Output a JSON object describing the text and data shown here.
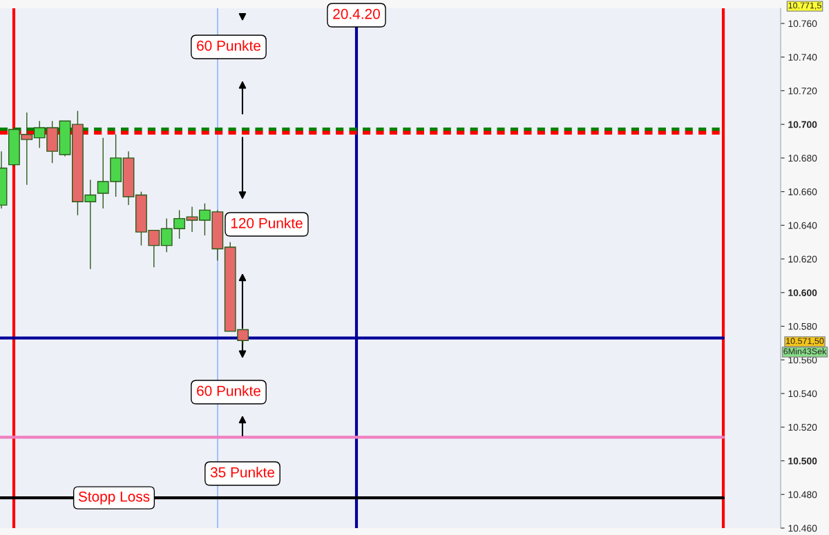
{
  "chart_data": {
    "type": "candlestick",
    "categories": [
      null,
      null,
      null,
      null,
      null,
      null,
      null,
      null,
      null,
      null,
      null,
      null,
      null,
      null,
      null,
      null,
      null,
      null,
      null,
      null,
      null,
      null,
      null,
      null,
      null,
      null,
      null,
      null,
      null,
      null,
      null,
      null,
      null,
      null,
      null,
      null,
      null,
      null,
      null,
      null,
      null,
      null,
      null,
      null,
      null,
      null,
      null,
      null,
      null,
      null,
      null,
      null,
      null,
      null,
      null,
      null,
      null,
      null,
      null,
      null,
      null
    ],
    "ohlc": [
      [
        10652,
        10684,
        10650,
        10674
      ],
      [
        10676,
        10697,
        10675,
        10697
      ],
      [
        10694,
        10707,
        10664,
        10691
      ],
      [
        10692,
        10702,
        10686,
        10698
      ],
      [
        10698,
        10702,
        10677,
        10684
      ],
      [
        10682,
        10702,
        10681,
        10702
      ],
      [
        10700,
        10708,
        10646,
        10654
      ],
      [
        10654,
        10667,
        10614,
        10658
      ],
      [
        10659,
        10692,
        10650,
        10666
      ],
      [
        10666,
        10694,
        10657,
        10680
      ],
      [
        10680,
        10684,
        10652,
        10657
      ],
      [
        10658,
        10660,
        10628,
        10636
      ],
      [
        10637,
        10637,
        10615,
        10628
      ],
      [
        10628,
        10644,
        10624,
        10638
      ],
      [
        10638,
        10649,
        10632,
        10644
      ],
      [
        10645,
        10651,
        10636,
        10643
      ],
      [
        10643,
        10653,
        10634,
        10649
      ],
      [
        10648,
        10649,
        10619,
        10626
      ],
      [
        10627,
        10630,
        10577,
        10577
      ],
      [
        10578,
        10578,
        10569,
        10571.5
      ],
      null,
      null,
      null,
      null,
      null,
      null,
      null,
      null,
      null,
      null,
      null,
      null,
      null,
      null,
      null,
      null,
      null,
      null,
      null,
      null,
      null,
      null,
      null,
      null,
      null,
      null,
      null,
      null,
      null,
      null,
      null,
      null,
      null,
      null,
      null,
      null,
      null,
      null,
      null,
      null,
      null
    ],
    "colors": [
      "#4cd64c",
      "#4cd64c",
      "#e66a6a",
      "#4cd64c",
      "#e66a6a",
      "#4cd64c",
      "#e66a6a",
      "#4cd64c",
      "#4cd64c",
      "#4cd64c",
      "#e66a6a",
      "#e66a6a",
      "#e66a6a",
      "#4cd64c",
      "#4cd64c",
      "#e66a6a",
      "#4cd64c",
      "#e66a6a",
      "#e66a6a",
      "#e66a6a",
      null,
      null,
      null,
      null,
      null,
      null,
      null,
      null,
      null,
      null,
      null,
      null,
      null,
      null,
      null,
      null,
      null,
      null,
      null,
      null,
      null,
      null,
      null,
      null,
      null,
      null,
      null,
      null,
      null,
      null,
      null,
      null,
      null,
      null,
      null,
      null,
      null,
      null,
      null,
      null,
      null
    ],
    "ylim": [
      10460,
      10769
    ],
    "yticks": [
      {
        "value": 10460,
        "label": "10.460"
      },
      {
        "value": 10480,
        "label": "10.480"
      },
      {
        "value": 10500,
        "label": "10.500"
      },
      {
        "value": 10520,
        "label": "10.520"
      },
      {
        "value": 10540,
        "label": "10.540"
      },
      {
        "value": 10560,
        "label": "10.560"
      },
      {
        "value": 10580,
        "label": "10.580"
      },
      {
        "value": 10600,
        "label": "10.600"
      },
      {
        "value": 10620,
        "label": "10.620"
      },
      {
        "value": 10640,
        "label": "10.640"
      },
      {
        "value": 10660,
        "label": "10.660"
      },
      {
        "value": 10680,
        "label": "10.680"
      },
      {
        "value": 10700,
        "label": "10.700"
      },
      {
        "value": 10720,
        "label": "10.720"
      },
      {
        "value": 10740,
        "label": "10.740"
      },
      {
        "value": 10760,
        "label": "10.760"
      }
    ],
    "tick_labels": "y",
    "ref_lines": [
      {
        "axis": "y",
        "value": 10697,
        "color": "#008000",
        "line_style": "dashed"
      },
      {
        "axis": "y",
        "value": 10695,
        "color": "#ff0000",
        "line_style": "dashed"
      },
      {
        "axis": "y",
        "value": 10573,
        "color": "#000099",
        "line_style": "solid"
      },
      {
        "axis": "y",
        "value": 10514,
        "color": "#f080c0",
        "line_style": "solid"
      },
      {
        "axis": "y",
        "value": 10478,
        "color": "#000000",
        "line_style": "solid",
        "label": "Stopp Loss"
      }
    ],
    "annotations": [
      "20.4.20",
      "60 Punkte",
      "120 Punkte",
      "60 Punkte",
      "35 Punkte",
      "10.571,50",
      "6Min43Sek",
      "10.771,5"
    ]
  }
}
